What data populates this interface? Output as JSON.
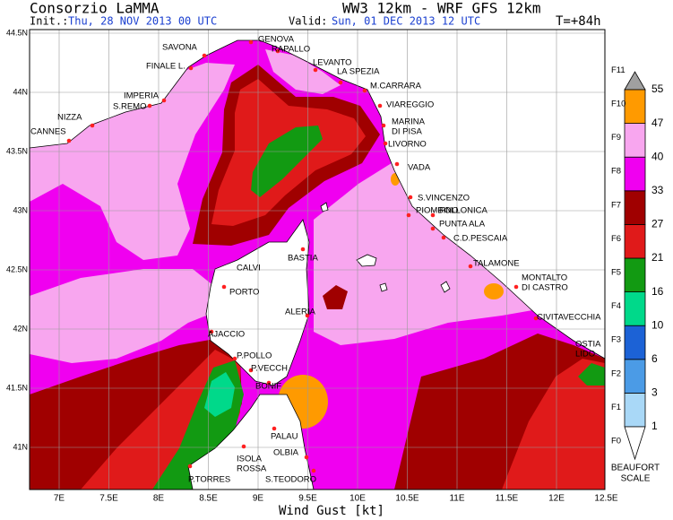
{
  "header": {
    "title": "Consorzio LaMMA",
    "model": "WW3 12km - WRF GFS 12km",
    "init_label": "Init.:",
    "init": "Thu, 28 NOV 2013 00 UTC",
    "valid_label": "Valid:",
    "valid": "Sun, 01 DEC 2013 12 UTC",
    "lead": "T=+84h"
  },
  "map": {
    "x_label": "Wind Gust [kt]",
    "lon_labels": [
      "7E",
      "7.5E",
      "8E",
      "8.5E",
      "9E",
      "9.5E",
      "10E",
      "10.5E",
      "11E",
      "11.5E",
      "12E",
      "12.5E"
    ],
    "lat_labels": [
      "44.5N",
      "44N",
      "43.5N",
      "43N",
      "42.5N",
      "42N",
      "41.5N",
      "41N"
    ],
    "cities": [
      [
        "SAVONA"
      ],
      [
        "GENOVA"
      ],
      [
        "RAPALLO"
      ],
      [
        "FINALE L."
      ],
      [
        "LEVANTO"
      ],
      [
        "LA SPEZIA"
      ],
      [
        "M.CARRARA"
      ],
      [
        "IMPERIA"
      ],
      [
        "S.REMO"
      ],
      [
        "VIAREGGIO"
      ],
      [
        "NIZZA"
      ],
      [
        "CANNES"
      ],
      [
        "MARINA",
        "DI PISA"
      ],
      [
        "LIVORNO"
      ],
      [
        "VADA"
      ],
      [
        "S.VINCENZO"
      ],
      [
        "PIOMBINO"
      ],
      [
        "FOLLONICA"
      ],
      [
        "PUNTA ALA"
      ],
      [
        "C.D.PESCAIA"
      ],
      [
        "BASTIA"
      ],
      [
        "TALAMONE"
      ],
      [
        "CALVI"
      ],
      [
        "MONTALTO",
        "DI CASTRO"
      ],
      [
        "PORTO"
      ],
      [
        "ALERIA"
      ],
      [
        "CIVITAVECCHIA"
      ],
      [
        "AJACCIO"
      ],
      [
        "OSTIA",
        "LIDO"
      ],
      [
        "P.POLLO"
      ],
      [
        "P.VECCH"
      ],
      [
        "BONIF"
      ],
      [
        "PALAU"
      ],
      [
        "OLBIA"
      ],
      [
        "ISOLA",
        "ROSSA"
      ],
      [
        "S.TEODORO"
      ],
      [
        "P.TORRES"
      ]
    ]
  },
  "colorbar": {
    "values": [
      1,
      3,
      6,
      10,
      16,
      21,
      27,
      33,
      40,
      47,
      55
    ],
    "colors": [
      "#a9d8f7",
      "#4b9be6",
      "#1c62d6",
      "#00d98a",
      "#129a12",
      "#e01a1a",
      "#a00000",
      "#f000f0",
      "#f8a6ef",
      "#ff9a00"
    ],
    "under_color": "#ffffff",
    "over_color": "#a0a0a0",
    "beaufort": [
      "F0",
      "F1",
      "F2",
      "F3",
      "F4",
      "F5",
      "F6",
      "F7",
      "F8",
      "F9",
      "F10",
      "F11"
    ],
    "title": [
      "BEAUFORT",
      "SCALE"
    ]
  }
}
